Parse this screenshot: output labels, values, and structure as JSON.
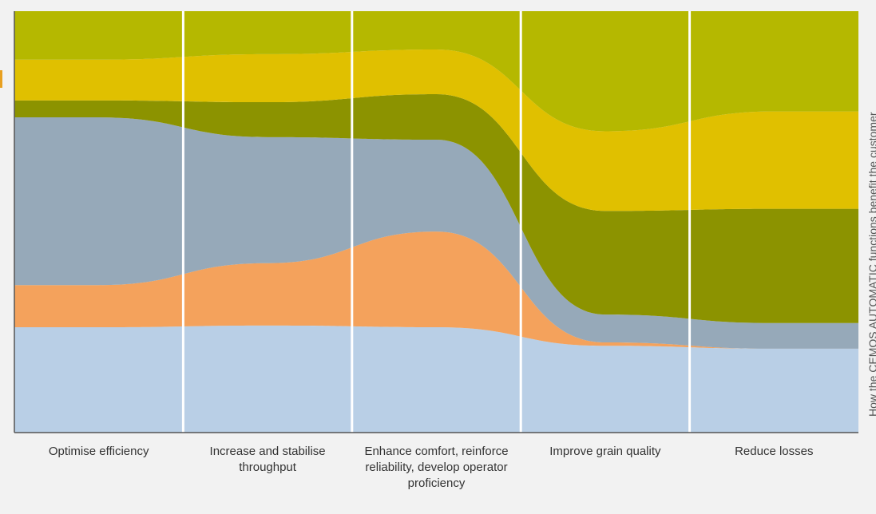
{
  "chart_data": {
    "type": "stacked_area",
    "side_title": "How the CEMOS AUTOMATIC functions benefit the customer",
    "categories": [
      "Optimise efficiency",
      "Increase and stabilise throughput",
      "Enhance comfort, reinforce reliability, develop operator proficiency",
      "Improve grain quality",
      "Reduce losses"
    ],
    "ylim": [
      0,
      100
    ],
    "series": [
      {
        "color": "#b9cfe6",
        "values": [
          25.0,
          25.4,
          25.0,
          20.6,
          19.9
        ]
      },
      {
        "color": "#f4a25c",
        "values": [
          10.0,
          14.8,
          22.7,
          0.8,
          0
        ]
      },
      {
        "color": "#96a9b9",
        "values": [
          39.8,
          29.9,
          21.8,
          6.6,
          6.1
        ]
      },
      {
        "color": "#8c9300",
        "values": [
          4.0,
          8.3,
          10.8,
          24.6,
          27.1
        ]
      },
      {
        "color": "#e0c000",
        "values": [
          9.7,
          11.4,
          10.6,
          18.9,
          23.1
        ]
      },
      {
        "color": "#b5b800",
        "values": [
          11.5,
          10.2,
          9.1,
          28.5,
          23.8
        ]
      }
    ]
  }
}
